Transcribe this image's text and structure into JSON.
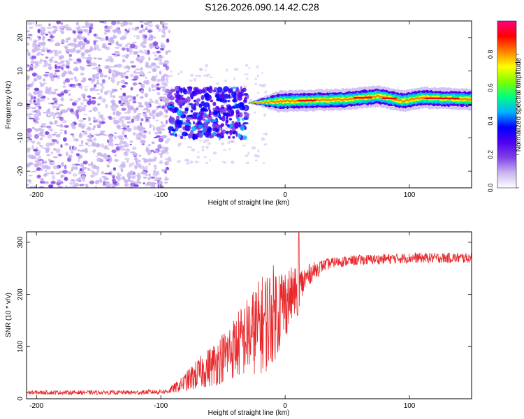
{
  "title": "S126.2026.090.14.42.C28",
  "colors": {
    "snr_line": "#e8282b",
    "colormap": [
      "#ffffff",
      "#c8b4f0",
      "#8040e8",
      "#5000f0",
      "#0000ff",
      "#00b4ff",
      "#00ff80",
      "#80ff00",
      "#ffff00",
      "#ff8000",
      "#ff0000",
      "#ff0080"
    ]
  },
  "chart_data": [
    {
      "type": "heatmap",
      "name": "spectrogram",
      "xlabel": "Height of straight line (km)",
      "ylabel": "Frequency (Hz)",
      "xlim": [
        -208,
        150
      ],
      "ylim": [
        -25,
        25
      ],
      "xticks": [
        -200,
        -100,
        0,
        100
      ],
      "xtick_labels": [
        "-200",
        "-100",
        "0",
        "100"
      ],
      "yticks": [
        -20,
        -10,
        0,
        10,
        20
      ],
      "ytick_labels": [
        "-20",
        "-10",
        "0",
        "10",
        "20"
      ],
      "colorbar": {
        "label": "Normalized spectral amplitude",
        "range": [
          0,
          1
        ],
        "ticks": [
          0.0,
          0.2,
          0.4,
          0.6,
          0.8
        ],
        "tick_labels": [
          "0.0",
          "0.2",
          "0.4",
          "0.6",
          "0.8"
        ]
      },
      "regions": [
        {
          "x": [
            -208,
            -93
          ],
          "description": "noise",
          "freq_range": [
            -25,
            25
          ],
          "amplitude": 0.1
        },
        {
          "x": [
            -93,
            -30
          ],
          "description": "transition",
          "freq_range": [
            -10,
            5
          ],
          "amplitude": 0.25
        },
        {
          "x": [
            -30,
            150
          ],
          "description": "signal",
          "freq_center": [
            [
              -30,
              0.5
            ],
            [
              0,
              1
            ],
            [
              50,
              1.5
            ],
            [
              75,
              2.5
            ],
            [
              95,
              1
            ],
            [
              110,
              2
            ],
            [
              150,
              1.5
            ]
          ],
          "amplitude": 0.85
        }
      ],
      "grid": false
    },
    {
      "type": "line",
      "name": "snr",
      "xlabel": "Height of straight line (km)",
      "ylabel": "SNR (10 * v/v)",
      "xlim": [
        -208,
        150
      ],
      "ylim": [
        0,
        320
      ],
      "xticks": [
        -200,
        -100,
        0,
        100
      ],
      "xtick_labels": [
        "-200",
        "-100",
        "0",
        "100"
      ],
      "yticks": [
        0,
        100,
        200,
        300
      ],
      "ytick_labels": [
        "0",
        "100",
        "200",
        "300"
      ],
      "envelope": {
        "x": [
          -208,
          -120,
          -95,
          -85,
          -75,
          -65,
          -55,
          -45,
          -35,
          -25,
          -15,
          -5,
          0,
          10,
          20,
          30,
          40,
          60,
          80,
          100,
          120,
          150
        ],
        "mean": [
          12,
          12,
          14,
          25,
          40,
          55,
          70,
          90,
          110,
          130,
          150,
          175,
          185,
          210,
          240,
          255,
          262,
          266,
          268,
          270,
          270,
          270
        ],
        "spread": [
          4,
          4,
          5,
          12,
          25,
          35,
          45,
          55,
          70,
          85,
          100,
          90,
          70,
          40,
          20,
          12,
          10,
          10,
          10,
          10,
          10,
          10
        ]
      },
      "peak": {
        "x": 11,
        "y": 318
      },
      "grid": false
    }
  ]
}
